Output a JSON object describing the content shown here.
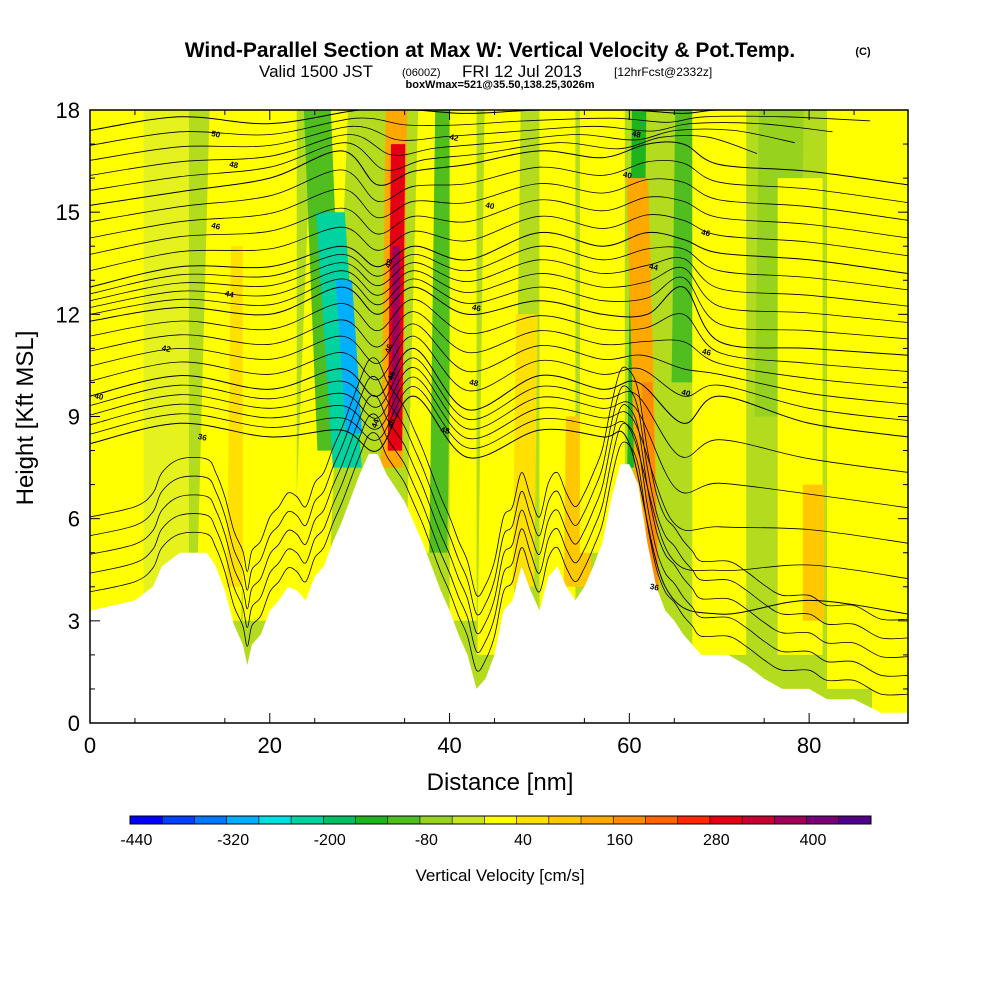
{
  "header": {
    "title": "Wind-Parallel Section at Max W: Vertical Velocity & Pot.Temp.",
    "copyright": "(C)",
    "valid_main": "Valid 1500 JST",
    "valid_utc": "(0600Z)",
    "valid_date": "FRI 12 Jul 2013",
    "forecast": "[12hrFcst@2332z]",
    "box": "boxWmax=521@35.50,138.25,3026m"
  },
  "chart_data": {
    "type": "heatmap",
    "title": "Wind-Parallel Section at Max W: Vertical Velocity & Pot.Temp.",
    "xlabel": "Distance [nm]",
    "ylabel": "Height [Kft MSL]",
    "xlim": [
      0,
      91
    ],
    "ylim": [
      0,
      18
    ],
    "x_ticks": [
      "0",
      "20",
      "40",
      "60",
      "80"
    ],
    "y_ticks": [
      "0",
      "3",
      "6",
      "9",
      "12",
      "15",
      "18"
    ],
    "x_tick_values": [
      0,
      20,
      40,
      60,
      80
    ],
    "y_tick_values": [
      0,
      3,
      6,
      9,
      12,
      15,
      18
    ],
    "colorbar": {
      "label": "Vertical Velocity [cm/s]",
      "tick_labels": [
        "-440",
        "-320",
        "-200",
        "-80",
        "40",
        "160",
        "280",
        "400"
      ],
      "bin_colors": [
        "#0000ff",
        "#0040ff",
        "#0078ff",
        "#00b0ff",
        "#00e0e0",
        "#00d2a0",
        "#00c064",
        "#1eb41e",
        "#50be1e",
        "#96d21e",
        "#c8e61e",
        "#ffff00",
        "#ffe000",
        "#ffc800",
        "#ffa800",
        "#ff8c00",
        "#ff6400",
        "#ff2800",
        "#e60014",
        "#c80032",
        "#a0005a",
        "#780078",
        "#50008c"
      ]
    },
    "terrain": [
      [
        0,
        3.3
      ],
      [
        5,
        3.6
      ],
      [
        7,
        4.0
      ],
      [
        8,
        4.6
      ],
      [
        10,
        5.0
      ],
      [
        13,
        5.0
      ],
      [
        14,
        4.6
      ],
      [
        15,
        3.9
      ],
      [
        16,
        2.9
      ],
      [
        17,
        2.3
      ],
      [
        17.5,
        1.7
      ],
      [
        18,
        2.3
      ],
      [
        19,
        2.6
      ],
      [
        20,
        3.3
      ],
      [
        21,
        3.6
      ],
      [
        22,
        4.0
      ],
      [
        23,
        3.9
      ],
      [
        24,
        3.6
      ],
      [
        25,
        4.3
      ],
      [
        26,
        4.6
      ],
      [
        27,
        5.3
      ],
      [
        28,
        5.9
      ],
      [
        29,
        6.6
      ],
      [
        30,
        7.3
      ],
      [
        31,
        7.9
      ],
      [
        32,
        7.9
      ],
      [
        33,
        7.3
      ],
      [
        34,
        6.9
      ],
      [
        35,
        6.5
      ],
      [
        36,
        5.9
      ],
      [
        37,
        5.3
      ],
      [
        38,
        4.6
      ],
      [
        39,
        3.9
      ],
      [
        40,
        3.3
      ],
      [
        41,
        2.6
      ],
      [
        42,
        2.0
      ],
      [
        43,
        1.0
      ],
      [
        44,
        1.3
      ],
      [
        45,
        2.0
      ],
      [
        46,
        3.3
      ],
      [
        47,
        3.6
      ],
      [
        48,
        4.6
      ],
      [
        49,
        3.9
      ],
      [
        50,
        3.3
      ],
      [
        51,
        4.3
      ],
      [
        52,
        4.6
      ],
      [
        53,
        4.0
      ],
      [
        54,
        3.6
      ],
      [
        55,
        4.0
      ],
      [
        56,
        4.6
      ],
      [
        57,
        5.3
      ],
      [
        58,
        6.6
      ],
      [
        59,
        7.6
      ],
      [
        60,
        7.6
      ],
      [
        61,
        7.0
      ],
      [
        62,
        5.3
      ],
      [
        63,
        4.0
      ],
      [
        64,
        3.3
      ],
      [
        65,
        3.0
      ],
      [
        66,
        2.6
      ],
      [
        67,
        2.3
      ],
      [
        68,
        2.0
      ],
      [
        71,
        2.0
      ],
      [
        73,
        1.7
      ],
      [
        75,
        1.3
      ],
      [
        77,
        1.0
      ],
      [
        80,
        1.0
      ],
      [
        82,
        0.7
      ],
      [
        85,
        0.7
      ],
      [
        88,
        0.3
      ],
      [
        91,
        0.3
      ]
    ],
    "series": [
      {
        "label": "36",
        "values": [
          [
            0,
            8.2
          ],
          [
            10,
            8.8
          ],
          [
            20,
            8.4
          ],
          [
            28,
            8.6
          ],
          [
            32,
            8.0
          ],
          [
            36,
            9.6
          ],
          [
            42,
            7.8
          ],
          [
            50,
            8.6
          ],
          [
            57,
            8.4
          ],
          [
            60,
            8.2
          ],
          [
            64,
            4.0
          ],
          [
            70,
            3.2
          ],
          [
            80,
            3.6
          ],
          [
            91,
            3.2
          ]
        ]
      },
      {
        "label": "40",
        "values": [
          [
            0,
            9.6
          ],
          [
            10,
            10.2
          ],
          [
            20,
            9.8
          ],
          [
            28,
            10.4
          ],
          [
            32,
            9.6
          ],
          [
            36,
            11.0
          ],
          [
            42,
            9.2
          ],
          [
            50,
            10.2
          ],
          [
            57,
            9.8
          ],
          [
            61,
            10.0
          ],
          [
            66,
            8.8
          ],
          [
            70,
            9.6
          ],
          [
            80,
            8.8
          ],
          [
            91,
            8.4
          ]
        ]
      },
      {
        "label": "44",
        "values": [
          [
            0,
            11.8
          ],
          [
            10,
            12.2
          ],
          [
            20,
            12.0
          ],
          [
            28,
            12.8
          ],
          [
            32,
            12.0
          ],
          [
            36,
            12.8
          ],
          [
            42,
            12.0
          ],
          [
            50,
            12.4
          ],
          [
            57,
            12.0
          ],
          [
            62,
            12.0
          ],
          [
            66,
            12.8
          ],
          [
            70,
            11.2
          ],
          [
            80,
            11.0
          ],
          [
            91,
            10.8
          ]
        ]
      },
      {
        "label": "46",
        "values": [
          [
            0,
            12.8
          ],
          [
            10,
            13.4
          ],
          [
            20,
            13.4
          ],
          [
            28,
            14.0
          ],
          [
            32,
            13.4
          ],
          [
            36,
            14.0
          ],
          [
            42,
            13.6
          ],
          [
            50,
            14.4
          ],
          [
            57,
            14.0
          ],
          [
            62,
            14.4
          ],
          [
            66,
            14.2
          ],
          [
            70,
            13.8
          ],
          [
            80,
            13.6
          ],
          [
            91,
            13.2
          ]
        ]
      },
      {
        "label": "48",
        "values": [
          [
            0,
            15.2
          ],
          [
            10,
            15.6
          ],
          [
            20,
            16.0
          ],
          [
            28,
            16.8
          ],
          [
            32,
            15.8
          ],
          [
            36,
            16.2
          ],
          [
            42,
            16.4
          ],
          [
            50,
            16.8
          ],
          [
            57,
            16.6
          ],
          [
            62,
            17.0
          ],
          [
            66,
            17.0
          ],
          [
            70,
            16.4
          ],
          [
            80,
            16.2
          ],
          [
            91,
            15.8
          ]
        ]
      },
      {
        "label": "50",
        "values": [
          [
            0,
            17.4
          ],
          [
            10,
            17.8
          ],
          [
            20,
            17.6
          ],
          [
            30,
            18.0
          ],
          [
            36,
            18.0
          ],
          [
            42,
            17.9
          ],
          [
            50,
            18.0
          ],
          [
            60,
            18.0
          ],
          [
            66,
            17.9
          ],
          [
            70,
            18.0
          ],
          [
            80,
            18.0
          ],
          [
            91,
            18.0
          ]
        ]
      }
    ],
    "contour_labels": [
      "50",
      "48",
      "46",
      "44",
      "42",
      "40",
      "36",
      "48",
      "46",
      "46",
      "44",
      "46",
      "42",
      "40",
      "46",
      "48",
      "48",
      "48",
      "40",
      "46",
      "44",
      "46",
      "40",
      "36"
    ]
  }
}
